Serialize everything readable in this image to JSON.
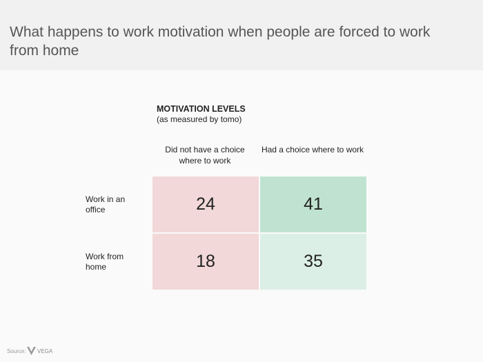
{
  "header": {
    "title": "What happens to work motivation when people are forced to work from home"
  },
  "table": {
    "heading": "MOTIVATION LEVELS",
    "subheading": "(as measured by tomo)",
    "columns": [
      "Did not have a choice where to work",
      "Had a choice where to work"
    ],
    "rows": [
      {
        "label": "Work in an office",
        "values": [
          24,
          41
        ]
      },
      {
        "label": "Work from home",
        "values": [
          18,
          35
        ]
      }
    ]
  },
  "footer": {
    "source": "Source:",
    "logo": "VEGA"
  }
}
